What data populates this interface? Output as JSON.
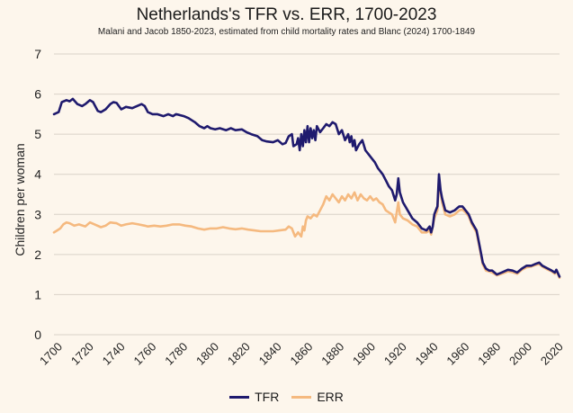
{
  "chart_data": {
    "type": "line",
    "title": "Netherlands's TFR vs. ERR, 1700-2023",
    "subtitle": "Malani and Jacob 1850-2023, estimated from child mortality rates and Blanc (2024) 1700-1849",
    "ylabel": "Children per woman",
    "xlabel": "",
    "xlim": [
      1700,
      2023
    ],
    "ylim": [
      0,
      7
    ],
    "x_ticks": [
      "1700",
      "1720",
      "1740",
      "1760",
      "1780",
      "1800",
      "1820",
      "1840",
      "1860",
      "1880",
      "1900",
      "1920",
      "1940",
      "1960",
      "1980",
      "2000",
      "2020"
    ],
    "y_ticks": [
      "0",
      "1",
      "2",
      "3",
      "4",
      "5",
      "6",
      "7"
    ],
    "grid": true,
    "legend": "bottom",
    "series": [
      {
        "name": "TFR",
        "color": "#1f1a6e",
        "points": [
          [
            1700,
            5.5
          ],
          [
            1703,
            5.55
          ],
          [
            1705,
            5.8
          ],
          [
            1708,
            5.85
          ],
          [
            1710,
            5.82
          ],
          [
            1712,
            5.88
          ],
          [
            1715,
            5.75
          ],
          [
            1718,
            5.7
          ],
          [
            1720,
            5.75
          ],
          [
            1723,
            5.85
          ],
          [
            1725,
            5.8
          ],
          [
            1728,
            5.58
          ],
          [
            1730,
            5.55
          ],
          [
            1733,
            5.62
          ],
          [
            1736,
            5.75
          ],
          [
            1738,
            5.8
          ],
          [
            1740,
            5.78
          ],
          [
            1743,
            5.62
          ],
          [
            1746,
            5.68
          ],
          [
            1750,
            5.65
          ],
          [
            1753,
            5.7
          ],
          [
            1756,
            5.75
          ],
          [
            1758,
            5.7
          ],
          [
            1760,
            5.55
          ],
          [
            1763,
            5.5
          ],
          [
            1766,
            5.5
          ],
          [
            1770,
            5.45
          ],
          [
            1773,
            5.5
          ],
          [
            1776,
            5.45
          ],
          [
            1778,
            5.5
          ],
          [
            1780,
            5.48
          ],
          [
            1783,
            5.45
          ],
          [
            1786,
            5.4
          ],
          [
            1790,
            5.3
          ],
          [
            1793,
            5.2
          ],
          [
            1796,
            5.15
          ],
          [
            1798,
            5.2
          ],
          [
            1800,
            5.15
          ],
          [
            1803,
            5.12
          ],
          [
            1806,
            5.15
          ],
          [
            1810,
            5.1
          ],
          [
            1813,
            5.15
          ],
          [
            1816,
            5.1
          ],
          [
            1820,
            5.12
          ],
          [
            1823,
            5.05
          ],
          [
            1826,
            5.0
          ],
          [
            1830,
            4.95
          ],
          [
            1833,
            4.85
          ],
          [
            1836,
            4.82
          ],
          [
            1840,
            4.8
          ],
          [
            1843,
            4.85
          ],
          [
            1846,
            4.75
          ],
          [
            1848,
            4.78
          ],
          [
            1850,
            4.95
          ],
          [
            1852,
            5.0
          ],
          [
            1853,
            4.7
          ],
          [
            1855,
            4.75
          ],
          [
            1856,
            4.9
          ],
          [
            1857,
            4.6
          ],
          [
            1858,
            5.0
          ],
          [
            1859,
            4.7
          ],
          [
            1860,
            5.1
          ],
          [
            1861,
            4.8
          ],
          [
            1862,
            5.2
          ],
          [
            1863,
            4.8
          ],
          [
            1864,
            5.15
          ],
          [
            1865,
            4.9
          ],
          [
            1866,
            5.1
          ],
          [
            1867,
            4.85
          ],
          [
            1868,
            5.2
          ],
          [
            1870,
            5.05
          ],
          [
            1872,
            5.15
          ],
          [
            1874,
            5.25
          ],
          [
            1876,
            5.2
          ],
          [
            1878,
            5.3
          ],
          [
            1880,
            5.25
          ],
          [
            1882,
            5.0
          ],
          [
            1884,
            5.1
          ],
          [
            1886,
            4.85
          ],
          [
            1888,
            5.0
          ],
          [
            1889,
            4.8
          ],
          [
            1890,
            4.95
          ],
          [
            1891,
            4.7
          ],
          [
            1892,
            4.85
          ],
          [
            1893,
            4.6
          ],
          [
            1895,
            4.75
          ],
          [
            1897,
            4.85
          ],
          [
            1899,
            4.6
          ],
          [
            1901,
            4.5
          ],
          [
            1903,
            4.4
          ],
          [
            1905,
            4.3
          ],
          [
            1907,
            4.15
          ],
          [
            1910,
            4.0
          ],
          [
            1912,
            3.85
          ],
          [
            1914,
            3.7
          ],
          [
            1916,
            3.6
          ],
          [
            1918,
            3.35
          ],
          [
            1919,
            3.5
          ],
          [
            1920,
            3.9
          ],
          [
            1921,
            3.55
          ],
          [
            1923,
            3.3
          ],
          [
            1926,
            3.1
          ],
          [
            1929,
            2.9
          ],
          [
            1932,
            2.8
          ],
          [
            1935,
            2.65
          ],
          [
            1938,
            2.6
          ],
          [
            1940,
            2.7
          ],
          [
            1941,
            2.55
          ],
          [
            1942,
            2.7
          ],
          [
            1943,
            3.0
          ],
          [
            1944,
            3.1
          ],
          [
            1945,
            3.2
          ],
          [
            1946,
            4.0
          ],
          [
            1947,
            3.6
          ],
          [
            1948,
            3.4
          ],
          [
            1950,
            3.1
          ],
          [
            1953,
            3.05
          ],
          [
            1956,
            3.1
          ],
          [
            1959,
            3.2
          ],
          [
            1961,
            3.2
          ],
          [
            1963,
            3.1
          ],
          [
            1965,
            3.0
          ],
          [
            1967,
            2.8
          ],
          [
            1970,
            2.6
          ],
          [
            1972,
            2.2
          ],
          [
            1974,
            1.8
          ],
          [
            1976,
            1.65
          ],
          [
            1978,
            1.6
          ],
          [
            1980,
            1.6
          ],
          [
            1983,
            1.5
          ],
          [
            1986,
            1.55
          ],
          [
            1990,
            1.62
          ],
          [
            1993,
            1.6
          ],
          [
            1996,
            1.55
          ],
          [
            1999,
            1.65
          ],
          [
            2002,
            1.72
          ],
          [
            2005,
            1.72
          ],
          [
            2008,
            1.77
          ],
          [
            2010,
            1.8
          ],
          [
            2012,
            1.72
          ],
          [
            2015,
            1.66
          ],
          [
            2018,
            1.6
          ],
          [
            2020,
            1.55
          ],
          [
            2021,
            1.62
          ],
          [
            2023,
            1.45
          ]
        ]
      },
      {
        "name": "ERR",
        "color": "#f5b97f",
        "points": [
          [
            1700,
            2.55
          ],
          [
            1702,
            2.6
          ],
          [
            1704,
            2.65
          ],
          [
            1706,
            2.75
          ],
          [
            1708,
            2.8
          ],
          [
            1710,
            2.78
          ],
          [
            1713,
            2.72
          ],
          [
            1716,
            2.75
          ],
          [
            1720,
            2.7
          ],
          [
            1723,
            2.8
          ],
          [
            1726,
            2.75
          ],
          [
            1730,
            2.68
          ],
          [
            1733,
            2.72
          ],
          [
            1736,
            2.8
          ],
          [
            1740,
            2.78
          ],
          [
            1743,
            2.72
          ],
          [
            1746,
            2.75
          ],
          [
            1750,
            2.78
          ],
          [
            1754,
            2.75
          ],
          [
            1758,
            2.72
          ],
          [
            1760,
            2.7
          ],
          [
            1764,
            2.72
          ],
          [
            1768,
            2.7
          ],
          [
            1772,
            2.72
          ],
          [
            1776,
            2.75
          ],
          [
            1780,
            2.75
          ],
          [
            1784,
            2.72
          ],
          [
            1788,
            2.7
          ],
          [
            1792,
            2.65
          ],
          [
            1796,
            2.62
          ],
          [
            1800,
            2.65
          ],
          [
            1804,
            2.65
          ],
          [
            1808,
            2.68
          ],
          [
            1812,
            2.65
          ],
          [
            1816,
            2.63
          ],
          [
            1820,
            2.65
          ],
          [
            1824,
            2.62
          ],
          [
            1828,
            2.6
          ],
          [
            1832,
            2.58
          ],
          [
            1836,
            2.58
          ],
          [
            1840,
            2.58
          ],
          [
            1844,
            2.6
          ],
          [
            1848,
            2.62
          ],
          [
            1850,
            2.7
          ],
          [
            1852,
            2.65
          ],
          [
            1854,
            2.45
          ],
          [
            1856,
            2.55
          ],
          [
            1858,
            2.45
          ],
          [
            1859,
            2.7
          ],
          [
            1860,
            2.6
          ],
          [
            1861,
            2.85
          ],
          [
            1862,
            2.95
          ],
          [
            1864,
            2.9
          ],
          [
            1866,
            3.0
          ],
          [
            1868,
            2.95
          ],
          [
            1870,
            3.1
          ],
          [
            1872,
            3.25
          ],
          [
            1874,
            3.45
          ],
          [
            1876,
            3.35
          ],
          [
            1878,
            3.5
          ],
          [
            1880,
            3.4
          ],
          [
            1882,
            3.3
          ],
          [
            1884,
            3.45
          ],
          [
            1886,
            3.35
          ],
          [
            1888,
            3.5
          ],
          [
            1890,
            3.4
          ],
          [
            1892,
            3.55
          ],
          [
            1894,
            3.35
          ],
          [
            1896,
            3.5
          ],
          [
            1898,
            3.4
          ],
          [
            1900,
            3.35
          ],
          [
            1902,
            3.45
          ],
          [
            1904,
            3.35
          ],
          [
            1906,
            3.4
          ],
          [
            1908,
            3.3
          ],
          [
            1910,
            3.25
          ],
          [
            1912,
            3.1
          ],
          [
            1914,
            3.05
          ],
          [
            1916,
            3.0
          ],
          [
            1918,
            2.8
          ],
          [
            1920,
            3.3
          ],
          [
            1921,
            3.0
          ],
          [
            1923,
            2.9
          ],
          [
            1926,
            2.85
          ],
          [
            1929,
            2.75
          ],
          [
            1932,
            2.7
          ],
          [
            1935,
            2.55
          ],
          [
            1938,
            2.55
          ],
          [
            1940,
            2.6
          ],
          [
            1941,
            2.5
          ],
          [
            1943,
            2.9
          ],
          [
            1945,
            3.1
          ],
          [
            1946,
            3.9
          ],
          [
            1947,
            3.55
          ],
          [
            1948,
            3.3
          ],
          [
            1950,
            3.0
          ],
          [
            1953,
            2.95
          ],
          [
            1956,
            3.0
          ],
          [
            1959,
            3.1
          ],
          [
            1961,
            3.12
          ],
          [
            1963,
            3.05
          ],
          [
            1965,
            2.95
          ],
          [
            1967,
            2.75
          ],
          [
            1970,
            2.55
          ],
          [
            1972,
            2.15
          ],
          [
            1974,
            1.75
          ],
          [
            1976,
            1.6
          ],
          [
            1978,
            1.58
          ],
          [
            1980,
            1.55
          ],
          [
            1983,
            1.48
          ],
          [
            1986,
            1.52
          ],
          [
            1990,
            1.58
          ],
          [
            1993,
            1.56
          ],
          [
            1996,
            1.52
          ],
          [
            1999,
            1.62
          ],
          [
            2002,
            1.68
          ],
          [
            2005,
            1.7
          ],
          [
            2008,
            1.74
          ],
          [
            2010,
            1.76
          ],
          [
            2012,
            1.7
          ],
          [
            2015,
            1.63
          ],
          [
            2018,
            1.58
          ],
          [
            2020,
            1.52
          ],
          [
            2021,
            1.6
          ],
          [
            2023,
            1.42
          ]
        ]
      }
    ]
  }
}
